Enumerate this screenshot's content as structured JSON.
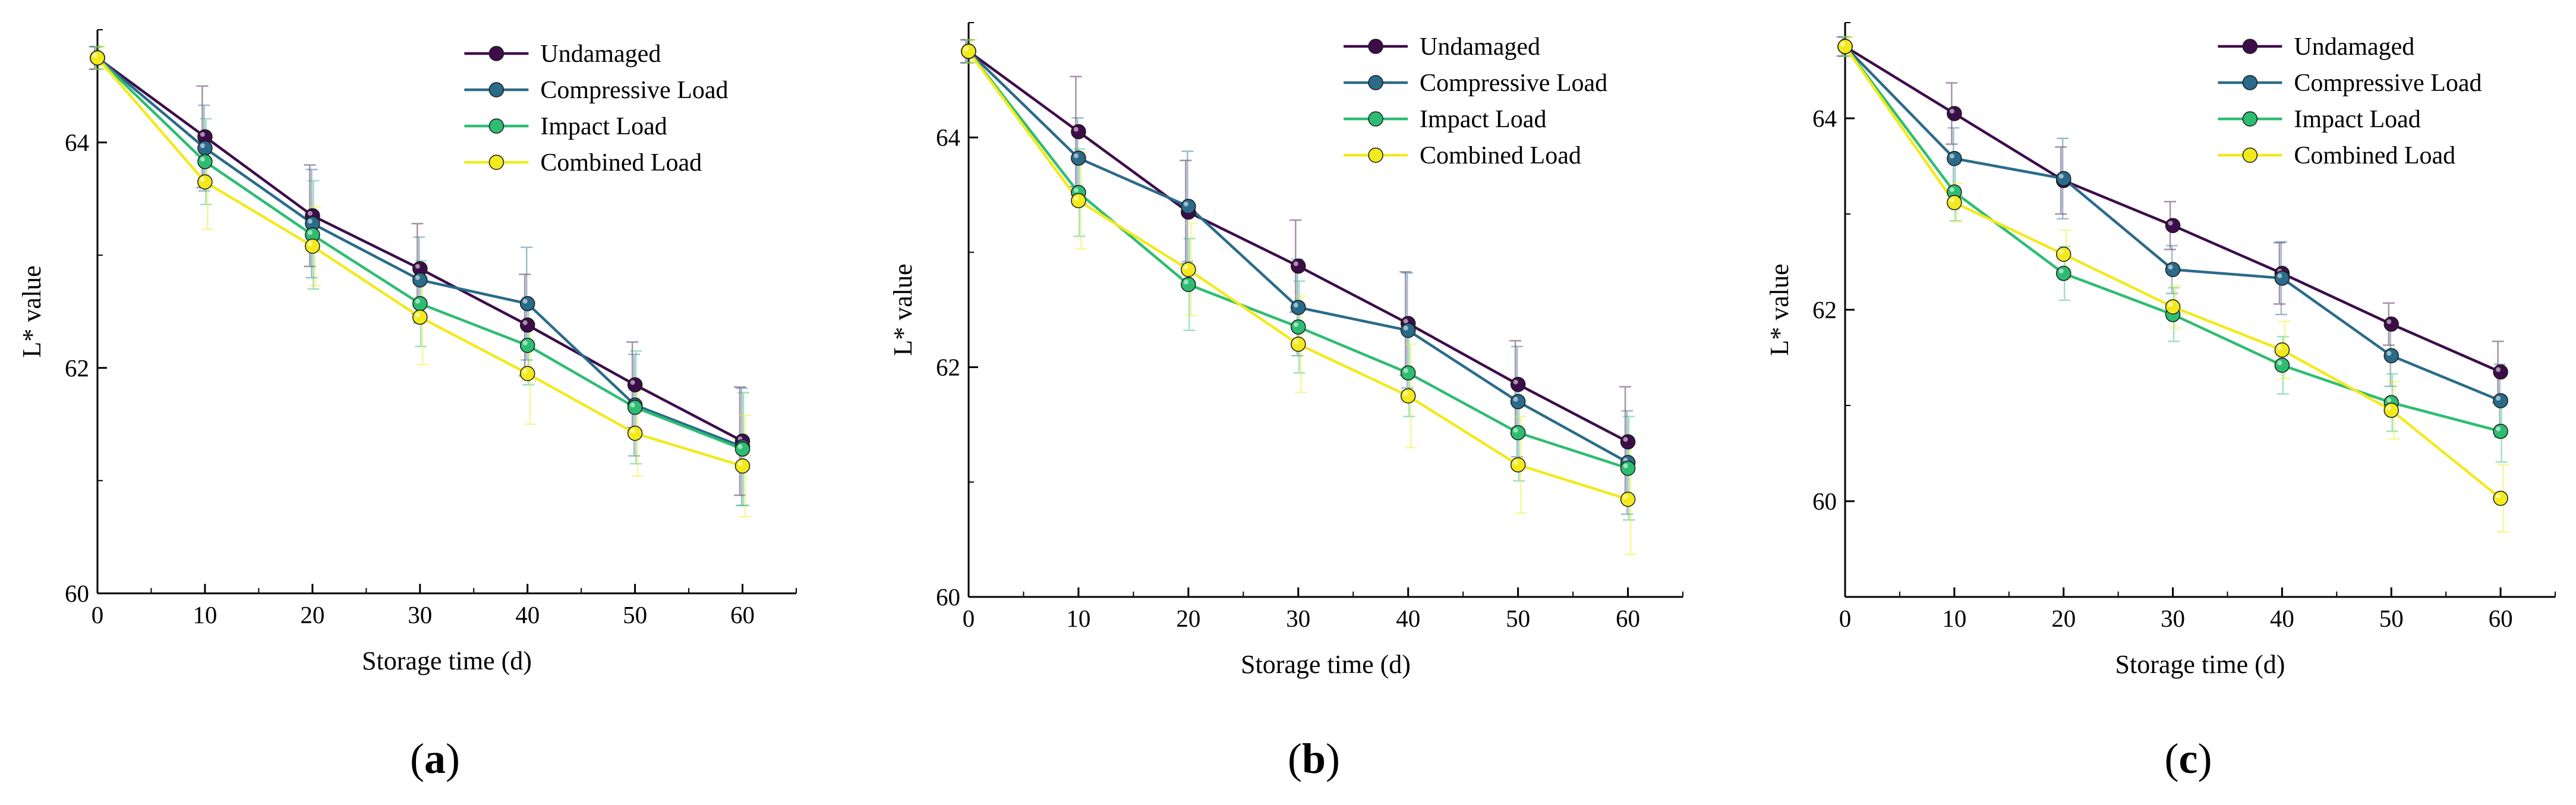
{
  "chart_data": [
    {
      "type": "line",
      "panel_label": "a",
      "xlabel": "Storage time (d)",
      "ylabel": "L* value",
      "xlim": [
        0,
        65
      ],
      "ylim": [
        60,
        65
      ],
      "xticks": [
        0,
        10,
        20,
        30,
        40,
        50,
        60
      ],
      "yticks": [
        60,
        62,
        64
      ],
      "x": [
        0,
        10,
        20,
        30,
        40,
        50,
        60
      ],
      "legend_position": "top-right",
      "series": [
        {
          "name": "Undamaged",
          "color": "#3d0d4a",
          "values": [
            64.75,
            64.05,
            63.35,
            62.88,
            62.38,
            61.85,
            61.35
          ],
          "errors": [
            0.1,
            0.45,
            0.45,
            0.4,
            0.45,
            0.38,
            0.48
          ]
        },
        {
          "name": "Compressive Load",
          "color": "#2a6b8a",
          "values": [
            64.75,
            63.95,
            63.28,
            62.78,
            62.57,
            61.67,
            61.3
          ],
          "errors": [
            0.1,
            0.38,
            0.48,
            0.38,
            0.5,
            0.45,
            0.52
          ]
        },
        {
          "name": "Impact Load",
          "color": "#2dbd72",
          "values": [
            64.75,
            63.83,
            63.18,
            62.57,
            62.2,
            61.65,
            61.28
          ],
          "errors": [
            0.1,
            0.38,
            0.48,
            0.38,
            0.35,
            0.5,
            0.5
          ]
        },
        {
          "name": "Combined Load",
          "color": "#f2ea1c",
          "values": [
            64.75,
            63.65,
            63.08,
            62.45,
            61.95,
            61.42,
            61.13
          ],
          "errors": [
            0.1,
            0.42,
            0.35,
            0.42,
            0.45,
            0.38,
            0.45
          ]
        }
      ]
    },
    {
      "type": "line",
      "panel_label": "b",
      "xlabel": "Storage time (d)",
      "ylabel": "L* value",
      "xlim": [
        0,
        65
      ],
      "ylim": [
        60,
        65
      ],
      "xticks": [
        0,
        10,
        20,
        30,
        40,
        50,
        60
      ],
      "yticks": [
        60,
        62,
        64
      ],
      "x": [
        0,
        10,
        20,
        30,
        40,
        50,
        60
      ],
      "legend_position": "top-right",
      "series": [
        {
          "name": "Undamaged",
          "color": "#3d0d4a",
          "values": [
            64.75,
            64.05,
            63.35,
            62.88,
            62.38,
            61.85,
            61.35
          ],
          "errors": [
            0.1,
            0.48,
            0.45,
            0.4,
            0.45,
            0.38,
            0.48
          ]
        },
        {
          "name": "Compressive Load",
          "color": "#2a6b8a",
          "values": [
            64.75,
            63.82,
            63.4,
            62.52,
            62.32,
            61.7,
            61.17
          ],
          "errors": [
            0.1,
            0.35,
            0.48,
            0.42,
            0.5,
            0.48,
            0.45
          ]
        },
        {
          "name": "Impact Load",
          "color": "#2dbd72",
          "values": [
            64.75,
            63.52,
            62.72,
            62.35,
            61.95,
            61.43,
            61.12
          ],
          "errors": [
            0.1,
            0.38,
            0.4,
            0.4,
            0.38,
            0.42,
            0.45
          ]
        },
        {
          "name": "Combined Load",
          "color": "#f2ea1c",
          "values": [
            64.75,
            63.45,
            62.85,
            62.2,
            61.75,
            61.15,
            60.85
          ],
          "errors": [
            0.1,
            0.42,
            0.4,
            0.42,
            0.45,
            0.42,
            0.48
          ]
        }
      ]
    },
    {
      "type": "line",
      "panel_label": "c",
      "xlabel": "Storage time (d)",
      "ylabel": "L* value",
      "xlim": [
        0,
        65
      ],
      "ylim": [
        59,
        65
      ],
      "xticks": [
        0,
        10,
        20,
        30,
        40,
        50,
        60
      ],
      "yticks": [
        60,
        62,
        64
      ],
      "x": [
        0,
        10,
        20,
        30,
        40,
        50,
        60
      ],
      "legend_position": "top-right",
      "series": [
        {
          "name": "Undamaged",
          "color": "#3d0d4a",
          "values": [
            64.75,
            64.05,
            63.35,
            62.88,
            62.38,
            61.85,
            61.35
          ],
          "errors": [
            0.1,
            0.32,
            0.35,
            0.25,
            0.32,
            0.22,
            0.32
          ]
        },
        {
          "name": "Compressive Load",
          "color": "#2a6b8a",
          "values": [
            64.75,
            63.58,
            63.37,
            62.42,
            62.33,
            61.52,
            61.05
          ],
          "errors": [
            0.1,
            0.32,
            0.42,
            0.25,
            0.38,
            0.32,
            0.38
          ]
        },
        {
          "name": "Impact Load",
          "color": "#2dbd72",
          "values": [
            64.75,
            63.23,
            62.38,
            61.95,
            61.42,
            61.03,
            60.73
          ],
          "errors": [
            0.1,
            0.3,
            0.28,
            0.28,
            0.3,
            0.3,
            0.32
          ]
        },
        {
          "name": "Combined Load",
          "color": "#f2ea1c",
          "values": [
            64.75,
            63.12,
            62.58,
            62.03,
            61.58,
            60.95,
            60.03
          ],
          "errors": [
            0.1,
            0.2,
            0.25,
            0.22,
            0.3,
            0.3,
            0.35
          ]
        }
      ]
    }
  ]
}
